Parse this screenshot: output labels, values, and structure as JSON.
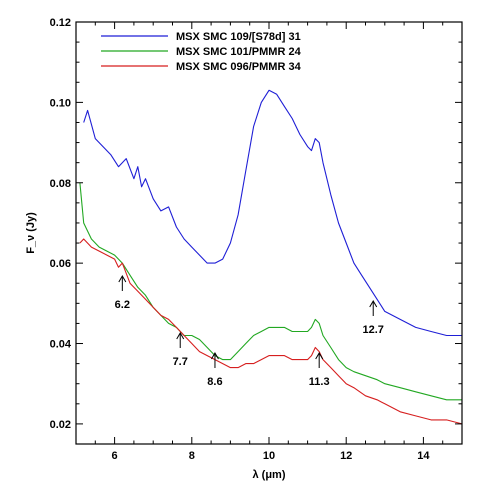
{
  "chart_data": {
    "type": "line",
    "xlabel": "λ (μm)",
    "ylabel": "F_ν (Jy)",
    "xlim": [
      5.0,
      15.0
    ],
    "ylim": [
      0.015,
      0.12
    ],
    "xticks": [
      6,
      8,
      10,
      12,
      14
    ],
    "yticks": [
      0.02,
      0.04,
      0.06,
      0.08,
      0.1,
      0.12
    ],
    "xtick_labels": [
      "6",
      "8",
      "10",
      "12",
      "14"
    ],
    "ytick_labels": [
      "0.02",
      "0.04",
      "0.06",
      "0.08",
      "0.10",
      "0.12"
    ],
    "grid": false,
    "legend_position": "top-left",
    "series": [
      {
        "name": "MSX SMC 109/[S78d] 31",
        "color": "#1f1fd6",
        "x": [
          5.2,
          5.3,
          5.5,
          5.7,
          5.9,
          6.1,
          6.3,
          6.5,
          6.6,
          6.7,
          6.8,
          7.0,
          7.2,
          7.4,
          7.6,
          7.8,
          8.0,
          8.2,
          8.4,
          8.6,
          8.8,
          9.0,
          9.2,
          9.4,
          9.6,
          9.8,
          10.0,
          10.2,
          10.4,
          10.6,
          10.8,
          11.0,
          11.1,
          11.2,
          11.3,
          11.4,
          11.6,
          11.8,
          12.0,
          12.2,
          12.4,
          12.6,
          12.8,
          13.0,
          13.4,
          13.8,
          14.2,
          14.6,
          15.0
        ],
        "y": [
          0.095,
          0.098,
          0.091,
          0.089,
          0.087,
          0.084,
          0.086,
          0.081,
          0.084,
          0.079,
          0.081,
          0.076,
          0.073,
          0.074,
          0.069,
          0.066,
          0.064,
          0.062,
          0.06,
          0.06,
          0.061,
          0.065,
          0.072,
          0.083,
          0.094,
          0.1,
          0.103,
          0.102,
          0.099,
          0.096,
          0.092,
          0.089,
          0.088,
          0.091,
          0.09,
          0.085,
          0.077,
          0.07,
          0.065,
          0.06,
          0.057,
          0.054,
          0.051,
          0.048,
          0.046,
          0.044,
          0.043,
          0.042,
          0.042
        ]
      },
      {
        "name": "MSX SMC 101/PMMR 24",
        "color": "#22a822",
        "x": [
          5.1,
          5.2,
          5.4,
          5.6,
          5.8,
          6.0,
          6.2,
          6.4,
          6.6,
          6.8,
          7.0,
          7.2,
          7.4,
          7.6,
          7.8,
          8.0,
          8.2,
          8.4,
          8.6,
          8.8,
          9.0,
          9.2,
          9.4,
          9.6,
          9.8,
          10.0,
          10.2,
          10.4,
          10.6,
          10.8,
          11.0,
          11.1,
          11.2,
          11.3,
          11.4,
          11.6,
          11.8,
          12.0,
          12.2,
          12.5,
          12.8,
          13.0,
          13.4,
          13.8,
          14.2,
          14.6,
          15.0
        ],
        "y": [
          0.08,
          0.07,
          0.066,
          0.064,
          0.063,
          0.062,
          0.06,
          0.057,
          0.054,
          0.052,
          0.049,
          0.047,
          0.045,
          0.044,
          0.042,
          0.042,
          0.041,
          0.039,
          0.037,
          0.036,
          0.036,
          0.038,
          0.04,
          0.042,
          0.043,
          0.044,
          0.044,
          0.044,
          0.043,
          0.043,
          0.043,
          0.044,
          0.046,
          0.045,
          0.042,
          0.039,
          0.036,
          0.034,
          0.033,
          0.032,
          0.031,
          0.03,
          0.029,
          0.028,
          0.027,
          0.026,
          0.026
        ]
      },
      {
        "name": "MSX SMC 096/PMMR 34",
        "color": "#d61f1f",
        "x": [
          5.1,
          5.2,
          5.4,
          5.6,
          5.8,
          6.0,
          6.1,
          6.2,
          6.4,
          6.6,
          6.8,
          7.0,
          7.2,
          7.4,
          7.6,
          7.8,
          8.0,
          8.2,
          8.4,
          8.6,
          8.8,
          9.0,
          9.2,
          9.4,
          9.6,
          9.8,
          10.0,
          10.2,
          10.4,
          10.6,
          10.8,
          11.0,
          11.1,
          11.2,
          11.3,
          11.4,
          11.6,
          11.8,
          12.0,
          12.2,
          12.5,
          12.8,
          13.0,
          13.4,
          13.8,
          14.2,
          14.6,
          15.0
        ],
        "y": [
          0.065,
          0.066,
          0.064,
          0.063,
          0.062,
          0.061,
          0.059,
          0.06,
          0.055,
          0.053,
          0.051,
          0.049,
          0.047,
          0.046,
          0.044,
          0.042,
          0.04,
          0.038,
          0.037,
          0.036,
          0.035,
          0.034,
          0.034,
          0.035,
          0.035,
          0.036,
          0.037,
          0.037,
          0.037,
          0.036,
          0.036,
          0.036,
          0.037,
          0.039,
          0.038,
          0.036,
          0.034,
          0.032,
          0.03,
          0.029,
          0.027,
          0.026,
          0.025,
          0.023,
          0.022,
          0.021,
          0.021,
          0.02
        ]
      }
    ],
    "annotations": [
      {
        "label": "6.2",
        "x": 6.2
      },
      {
        "label": "7.7",
        "x": 7.7
      },
      {
        "label": "8.6",
        "x": 8.6
      },
      {
        "label": "11.3",
        "x": 11.3
      },
      {
        "label": "12.7",
        "x": 12.7
      }
    ]
  }
}
